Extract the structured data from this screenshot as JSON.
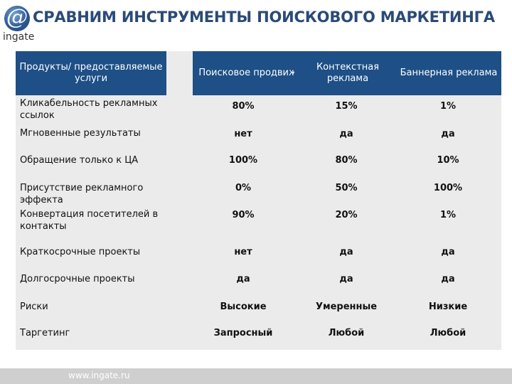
{
  "logo": {
    "symbol": "@",
    "text": "ingate"
  },
  "title": "СРАВНИМ ИНСТРУМЕНТЫ ПОИСКОВОГО МАРКЕТИНГА",
  "table": {
    "headers": [
      "Продукты/ предоставляемые услуги",
      "Поисковое продвижение",
      "Контекстная реклама",
      "Баннерная реклама"
    ],
    "rows": [
      {
        "label": "Кликабельность  рекламных ссылок",
        "values": [
          "80%",
          "15%",
          "1%"
        ]
      },
      {
        "label": "Мгновенные результаты",
        "values": [
          "нет",
          "да",
          "да"
        ]
      },
      {
        "label": "Обращение только к ЦА",
        "values": [
          "100%",
          "80%",
          "10%"
        ]
      },
      {
        "label": "Присутствие рекламного эффекта",
        "values": [
          "0%",
          "50%",
          "100%"
        ]
      },
      {
        "label": "Конвертация посетителей в контакты",
        "values": [
          "90%",
          "20%",
          "1%"
        ]
      },
      {
        "label": "Краткосрочные проекты",
        "values": [
          "нет",
          "да",
          "да"
        ]
      },
      {
        "label": "Долгосрочные проекты",
        "values": [
          "да",
          "да",
          "да"
        ]
      },
      {
        "label": "Риски",
        "values": [
          "Высокие",
          "Умеренные",
          "Низкие"
        ]
      },
      {
        "label": "Таргетинг",
        "values": [
          "Запросный",
          "Любой",
          "Любой"
        ]
      }
    ]
  },
  "footer": {
    "url": "www.ingate.ru"
  },
  "colors": {
    "header_bg": "#1e4f86",
    "title": "#2a4a78",
    "table_bg": "#ebebeb"
  }
}
